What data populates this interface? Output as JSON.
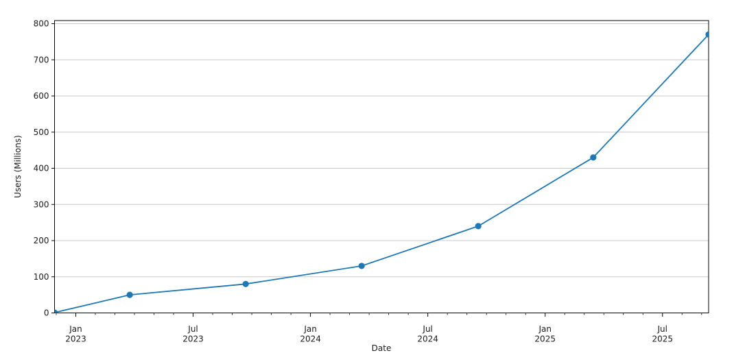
{
  "chart_data": {
    "type": "line",
    "title": "",
    "xlabel": "Date",
    "ylabel": "Users (Millions)",
    "legend": "none",
    "grid": "horizontal-only",
    "series": [
      {
        "name": "Users (Millions)",
        "color": "#1f77b4",
        "marker": "circle",
        "points": [
          {
            "date": "Nov 2022",
            "x": 2022.9095,
            "y": 1
          },
          {
            "date": "Mar 2023",
            "x": 2023.23,
            "y": 50
          },
          {
            "date": "Sep 2023",
            "x": 2023.724,
            "y": 80
          },
          {
            "date": "Mar 2024",
            "x": 2024.218,
            "y": 130
          },
          {
            "date": "Sep 2024",
            "x": 2024.715,
            "y": 240
          },
          {
            "date": "Mar 2025",
            "x": 2025.205,
            "y": 430
          },
          {
            "date": "Sep 2025",
            "x": 2025.6965,
            "y": 770
          }
        ]
      }
    ],
    "x_axis": {
      "label": "Date",
      "xlim": [
        2022.9095,
        2025.6965
      ],
      "major_ticks": [
        {
          "x": 2023.0,
          "line1": "Jan",
          "line2": "2023"
        },
        {
          "x": 2023.5,
          "line1": "Jul",
          "line2": "2023"
        },
        {
          "x": 2024.0,
          "line1": "Jan",
          "line2": "2024"
        },
        {
          "x": 2024.5,
          "line1": "Jul",
          "line2": "2024"
        },
        {
          "x": 2025.0,
          "line1": "Jan",
          "line2": "2025"
        },
        {
          "x": 2025.5,
          "line1": "Jul",
          "line2": "2025"
        }
      ],
      "minor_ticks": [
        2022.9167,
        2023.0833,
        2023.1667,
        2023.25,
        2023.3333,
        2023.4167,
        2023.5833,
        2023.6667,
        2023.75,
        2023.8333,
        2023.9167,
        2024.0833,
        2024.1667,
        2024.25,
        2024.3333,
        2024.4167,
        2024.5833,
        2024.6667,
        2024.75,
        2024.8333,
        2024.9167,
        2025.0833,
        2025.1667,
        2025.25,
        2025.3333,
        2025.4167,
        2025.5833,
        2025.6667
      ]
    },
    "y_axis": {
      "label": "Users (Millions)",
      "ylim": [
        0,
        808.5
      ],
      "ticks": [
        0,
        100,
        200,
        300,
        400,
        500,
        600,
        700,
        800
      ]
    },
    "colors": {
      "line": "#1f77b4",
      "grid": "#c9c9c9",
      "spine": "#000000",
      "text": "#1a1a1a",
      "background": "#ffffff"
    }
  }
}
